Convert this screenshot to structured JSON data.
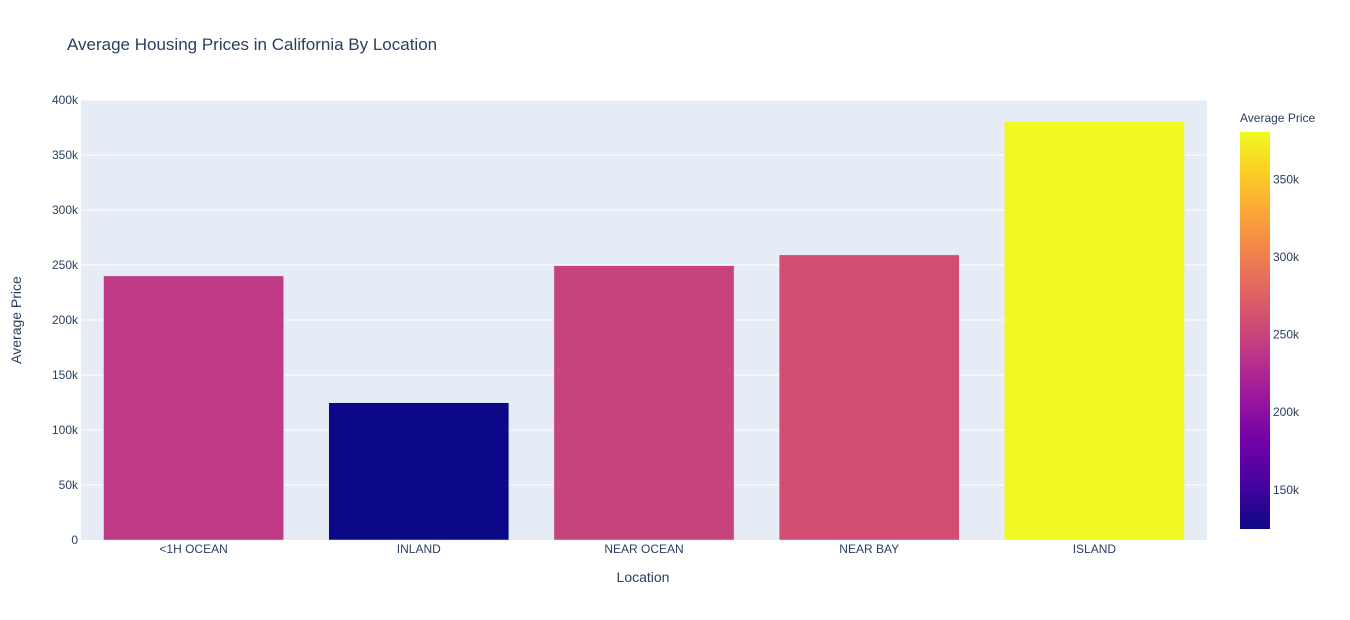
{
  "chart_data": {
    "type": "bar",
    "title": "Average Housing Prices in California By Location",
    "xlabel": "Location",
    "ylabel": "Average Price",
    "categories": [
      "<1H OCEAN",
      "INLAND",
      "NEAR OCEAN",
      "NEAR BAY",
      "ISLAND"
    ],
    "values": [
      240084,
      124805,
      249434,
      259212,
      380440
    ],
    "ylim": [
      0,
      400000
    ],
    "yticks": [
      0,
      50000,
      100000,
      150000,
      200000,
      250000,
      300000,
      350000,
      400000
    ],
    "ytick_labels": [
      "0",
      "50k",
      "100k",
      "150k",
      "200k",
      "250k",
      "300k",
      "350k",
      "400k"
    ],
    "grid": true,
    "plot_background": "#e5ecf6",
    "colorscale": "plasma",
    "colorbar": {
      "title": "Average Price",
      "range": [
        124805,
        380440
      ],
      "ticks": [
        150000,
        200000,
        250000,
        300000,
        350000
      ],
      "tick_labels": [
        "150k",
        "200k",
        "250k",
        "300k",
        "350k"
      ],
      "placement": "right"
    }
  }
}
